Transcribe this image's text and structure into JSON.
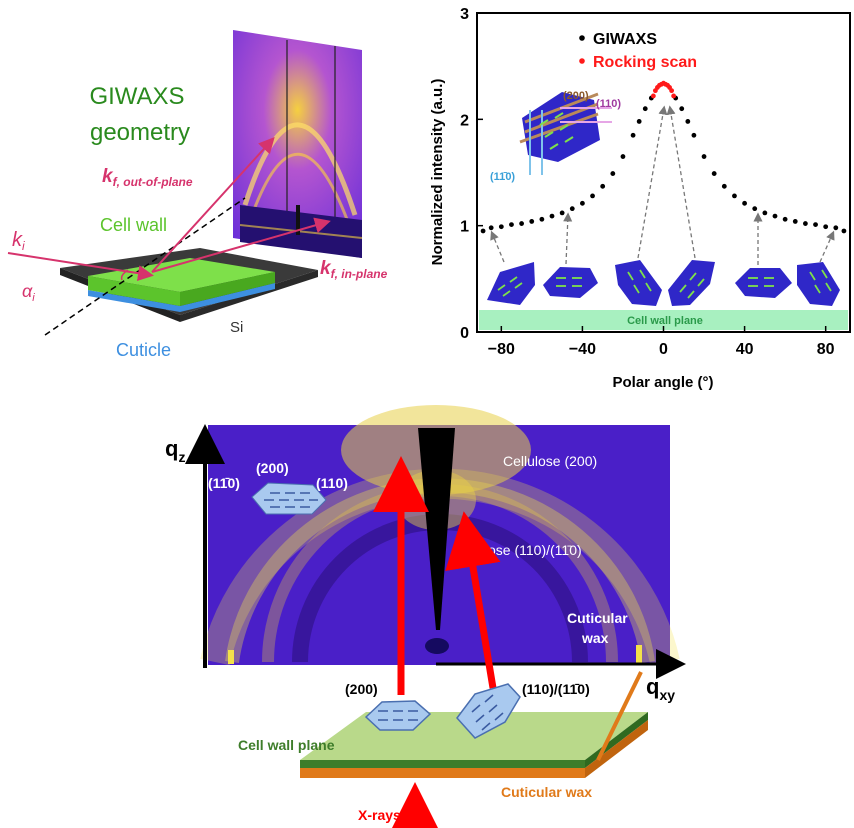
{
  "panel_a": {
    "title_line1": "GIWAXS",
    "title_line2": "geometry",
    "k_out": "k",
    "k_out_sub": "f, out-of-plane",
    "k_in": "k",
    "k_in_sub": "f, in-plane",
    "k_i": "k",
    "k_i_sub": "i",
    "alpha_i": "α",
    "alpha_sub": "i",
    "cell_wall": "Cell wall",
    "cuticle": "Cuticle",
    "si": "Si",
    "colors": {
      "cell_wall": "#7ee04a",
      "cuticle": "#3d8fe0",
      "substrate": "#3a3a3a",
      "beam": "#d6336c"
    }
  },
  "chart_data": {
    "type": "scatter",
    "xlabel": "Polar angle (°)",
    "ylabel": "Normalized intensity (a.u.)",
    "xlim": [
      -92,
      92
    ],
    "ylim": [
      0,
      3
    ],
    "xticks": [
      "−80",
      "−40",
      "0",
      "40",
      "80"
    ],
    "yticks": [
      "0",
      "1",
      "2",
      "3"
    ],
    "legend": {
      "position": "top",
      "entries": [
        "GIWAXS",
        "Rocking scan"
      ]
    },
    "series": [
      {
        "name": "GIWAXS",
        "color": "#000000",
        "x": [
          -89,
          -85,
          -80,
          -75,
          -70,
          -65,
          -60,
          -55,
          -50,
          -45,
          -40,
          -35,
          -30,
          -25,
          -20,
          -15,
          -12,
          -9,
          -6,
          6,
          9,
          12,
          15,
          20,
          25,
          30,
          35,
          40,
          45,
          50,
          55,
          60,
          65,
          70,
          75,
          80,
          85,
          89
        ],
        "y": [
          0.95,
          0.98,
          0.99,
          1.01,
          1.02,
          1.04,
          1.06,
          1.09,
          1.12,
          1.16,
          1.21,
          1.28,
          1.37,
          1.49,
          1.65,
          1.85,
          1.98,
          2.1,
          2.2,
          2.2,
          2.1,
          1.98,
          1.85,
          1.65,
          1.49,
          1.37,
          1.28,
          1.21,
          1.16,
          1.12,
          1.09,
          1.06,
          1.04,
          1.02,
          1.01,
          0.99,
          0.98,
          0.95
        ]
      },
      {
        "name": "Rocking scan",
        "color": "#ff1a1a",
        "x": [
          -5,
          -4,
          -3,
          -2,
          -1,
          0,
          1,
          2,
          3,
          4,
          5
        ],
        "y": [
          2.22,
          2.27,
          2.3,
          2.32,
          2.33,
          2.34,
          2.33,
          2.32,
          2.3,
          2.27,
          2.22
        ]
      }
    ],
    "annotations": {
      "cell_wall_plane": "Cell wall plane",
      "plane_200": "(200)",
      "plane_110": "(110)",
      "plane_1bar10": "(1",
      "plane_1bar10_bar": "1̄",
      "plane_1bar10_end": "0)"
    }
  },
  "panel_c": {
    "qz": "q",
    "qz_sub": "z",
    "qxy": "q",
    "qxy_sub": "xy",
    "cellulose_200": "Cellulose (200)",
    "cellulose_110": "Cellulose (110)/(1",
    "cellulose_110_bar": "1̄",
    "cellulose_110_end": "0)",
    "cuticular_line1": "Cuticular",
    "cuticular_line2": "wax",
    "inset_200": "(200)",
    "inset_110": "(110)",
    "inset_1bar10": "(1",
    "inset_1bar10_bar": "1̄",
    "inset_1bar10_end": "0)",
    "lbl_200": "(200)",
    "lbl_110": "(110)/(1",
    "lbl_110_bar": "1̄",
    "lbl_110_end": "0)",
    "cell_wall_plane": "Cell wall plane",
    "cuticular_wax": "Cuticular wax",
    "xrays": "X-rays"
  }
}
